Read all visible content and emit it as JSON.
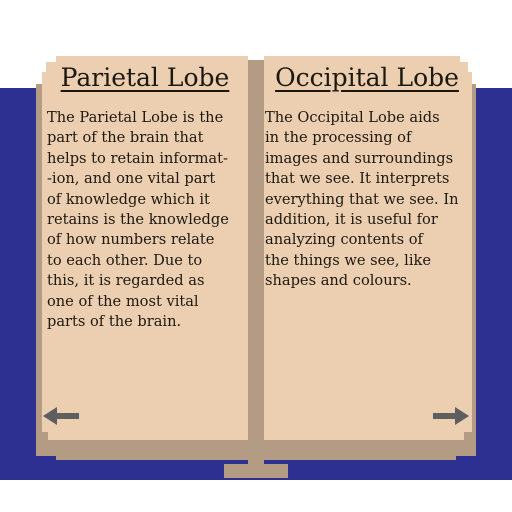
{
  "book": {
    "left_page": {
      "title": "Parietal Lobe",
      "body": "The Parietal Lobe is the\npart of the brain that\nhelps to retain informat-\n-ion, and one vital part\nof knowledge which it\nretains is the knowledge\nof how numbers relate\nto each other. Due to\nthis, it is regarded as\none of the most vital\nparts of the brain."
    },
    "right_page": {
      "title": "Occipital Lobe",
      "body": "The Occipital Lobe aids\nin the processing of\nimages and surroundings\nthat we see. It interprets\neverything that we see. In\naddition, it is useful for\nanalyzing contents of\nthe things we see, like\nshapes and colours."
    },
    "navigation": {
      "prev_icon": "arrow-left-icon",
      "next_icon": "arrow-right-icon"
    },
    "colors": {
      "cover": "#2d3091",
      "page": "#ecceb0",
      "page_shadow": "#b49c84",
      "text": "#1c1810",
      "arrow": "#5e5e5e"
    }
  }
}
